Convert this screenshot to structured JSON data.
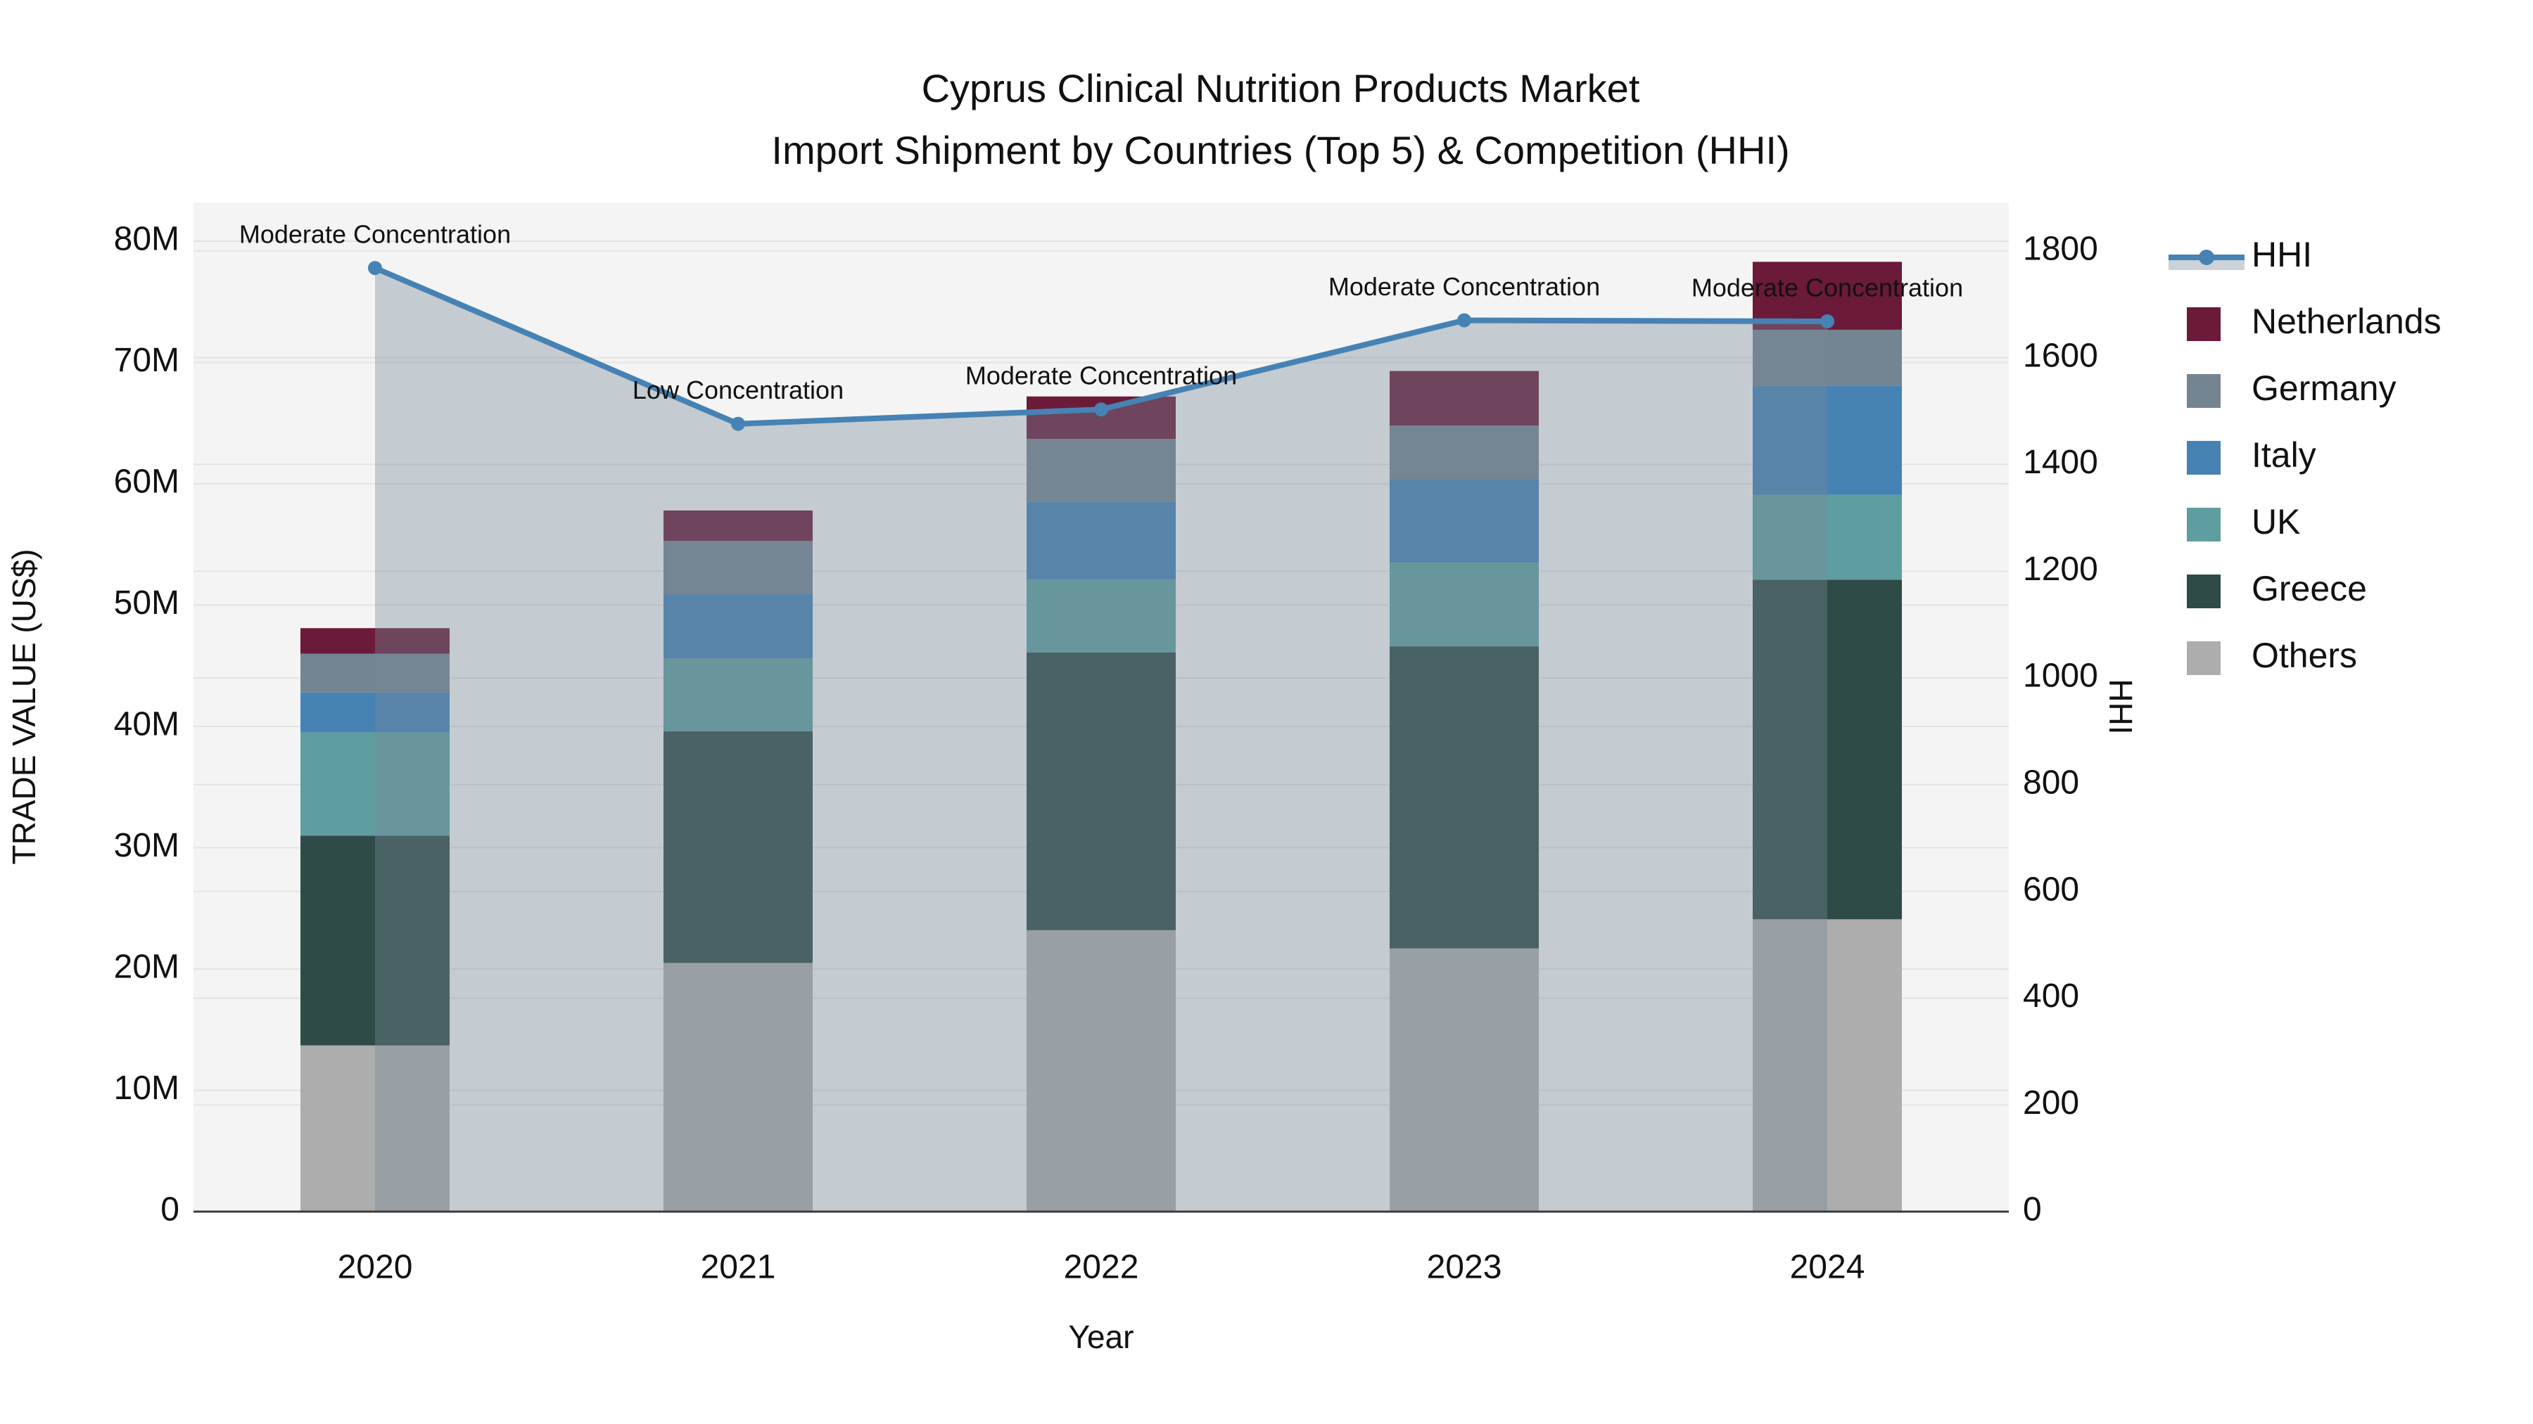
{
  "title": {
    "line1": "Cyprus Clinical Nutrition Products Market",
    "line2": "Import Shipment by Countries (Top 5) & Competition (HHI)"
  },
  "axes": {
    "x": {
      "title": "Year",
      "categories": [
        "2020",
        "2021",
        "2022",
        "2023",
        "2024"
      ]
    },
    "y_left": {
      "title": "TRADE VALUE (US$)",
      "tick_labels": [
        "0",
        "10M",
        "20M",
        "30M",
        "40M",
        "50M",
        "60M",
        "70M",
        "80M"
      ],
      "tick_step_musd": 10,
      "range_musd": [
        0,
        83.2
      ]
    },
    "y_right": {
      "title": "HHI",
      "tick_labels": [
        "0",
        "200",
        "400",
        "600",
        "800",
        "1000",
        "1200",
        "1400",
        "1600",
        "1800"
      ],
      "tick_step": 200,
      "range": [
        0,
        1891
      ]
    }
  },
  "legend": {
    "items": [
      {
        "key": "hhi",
        "label": "HHI",
        "swatch": "line-area"
      },
      {
        "key": "netherlands",
        "label": "Netherlands",
        "swatch": "square"
      },
      {
        "key": "germany",
        "label": "Germany",
        "swatch": "square"
      },
      {
        "key": "italy",
        "label": "Italy",
        "swatch": "square"
      },
      {
        "key": "uk",
        "label": "UK",
        "swatch": "square"
      },
      {
        "key": "greece",
        "label": "Greece",
        "swatch": "square"
      },
      {
        "key": "others",
        "label": "Others",
        "swatch": "square"
      }
    ]
  },
  "colors": {
    "netherlands": "#6B1A39",
    "germany": "#748491",
    "italy": "#4682B4",
    "uk": "#5F9EA0",
    "greece": "#2E4B47",
    "others": "#ADADAD",
    "hhi_line": "#4682B4",
    "area_fill": "#778899",
    "area_opacity": 0.38,
    "plot_bg": "#F4F4F4",
    "grid": "#E3E3E3",
    "axis_line": "#3B3B3B",
    "text": "#111111"
  },
  "chart_data": {
    "type": "bar+line",
    "title": "Cyprus Clinical Nutrition Products Market — Import Shipment by Countries (Top 5) & Competition (HHI)",
    "categories": [
      2020,
      2021,
      2022,
      2023,
      2024
    ],
    "stack_order_bottom_to_top": [
      "others",
      "greece",
      "uk",
      "italy",
      "germany",
      "netherlands"
    ],
    "series": [
      {
        "key": "netherlands",
        "name": "Netherlands",
        "unit": "M US$",
        "values": [
          2.1,
          2.5,
          3.5,
          4.5,
          5.6
        ]
      },
      {
        "key": "germany",
        "name": "Germany",
        "unit": "M US$",
        "values": [
          3.2,
          4.4,
          5.2,
          4.4,
          4.6
        ]
      },
      {
        "key": "italy",
        "name": "Italy",
        "unit": "M US$",
        "values": [
          3.3,
          5.3,
          6.4,
          6.9,
          9.0
        ]
      },
      {
        "key": "uk",
        "name": "UK",
        "unit": "M US$",
        "values": [
          8.5,
          6.0,
          6.0,
          6.9,
          7.0
        ]
      },
      {
        "key": "greece",
        "name": "Greece",
        "unit": "M US$",
        "values": [
          17.3,
          19.1,
          22.9,
          24.9,
          28.0
        ]
      },
      {
        "key": "others",
        "name": "Others",
        "unit": "M US$",
        "values": [
          13.7,
          20.5,
          23.2,
          21.7,
          24.1
        ]
      }
    ],
    "bar_totals_musd": [
      48.1,
      57.8,
      67.2,
      69.3,
      78.3
    ],
    "hhi": {
      "name": "HHI",
      "axis": "right",
      "values": [
        1768,
        1476,
        1503,
        1670,
        1668
      ],
      "style": "line+markers+area"
    },
    "annotations": [
      {
        "x": 2020,
        "text": "Moderate Concentration"
      },
      {
        "x": 2021,
        "text": "Low Concentration"
      },
      {
        "x": 2022,
        "text": "Moderate Concentration"
      },
      {
        "x": 2023,
        "text": "Moderate Concentration"
      },
      {
        "x": 2024,
        "text": "Moderate Concentration"
      }
    ],
    "layout_hints": {
      "grid": "horizontal-only",
      "legend_position": "right",
      "ylabel_left": "TRADE VALUE (US$)",
      "ylabel_right": "HHI",
      "xlabel": "Year"
    }
  }
}
